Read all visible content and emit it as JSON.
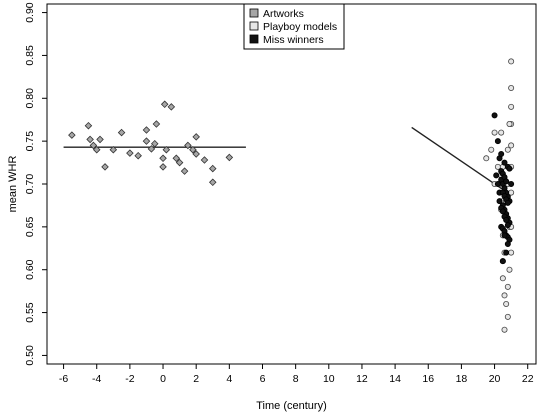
{
  "chart_data": {
    "type": "scatter",
    "title": "",
    "xlabel": "Time (century)",
    "ylabel": "mean WHR",
    "xlim": [
      -7,
      22.5
    ],
    "ylim": [
      0.49,
      0.91
    ],
    "x_ticks": [
      "-6",
      "-4",
      "-2",
      "0",
      "2",
      "4",
      "6",
      "8",
      "10",
      "12",
      "14",
      "16",
      "18",
      "20",
      "22"
    ],
    "y_ticks": [
      "0.50",
      "0.55",
      "0.60",
      "0.65",
      "0.70",
      "0.75",
      "0.80",
      "0.85",
      "0.90"
    ],
    "grid": false,
    "legend_position": "top-center",
    "series": [
      {
        "name": "Artworks",
        "color": "#a6a6a6",
        "marker": "diamond",
        "x": [
          -5.5,
          -4.5,
          -4.4,
          -4.2,
          -4.0,
          -3.8,
          -3.5,
          -3.0,
          -2.5,
          -2.0,
          -1.5,
          -1.0,
          -1.0,
          -0.7,
          -0.5,
          -0.4,
          0.0,
          0.0,
          0.1,
          0.2,
          0.5,
          0.8,
          1.0,
          1.3,
          1.5,
          1.8,
          2.0,
          2.0,
          2.5,
          3.0,
          3.0,
          4.0
        ],
        "y": [
          0.757,
          0.768,
          0.752,
          0.745,
          0.74,
          0.752,
          0.72,
          0.74,
          0.76,
          0.736,
          0.733,
          0.763,
          0.75,
          0.741,
          0.747,
          0.77,
          0.73,
          0.72,
          0.793,
          0.74,
          0.79,
          0.73,
          0.725,
          0.715,
          0.745,
          0.74,
          0.735,
          0.755,
          0.728,
          0.718,
          0.702,
          0.731
        ],
        "fit_line": {
          "x": [
            -6,
            5
          ],
          "y": [
            0.743,
            0.743
          ]
        }
      },
      {
        "name": "Playboy models",
        "color": "#e6e6e6",
        "marker": "circle",
        "x": [
          19.5,
          19.8,
          20.0,
          20.0,
          20.2,
          20.3,
          20.4,
          20.5,
          20.6,
          20.7,
          20.8,
          20.9,
          21.0,
          21.0,
          21.0,
          21.0,
          21.0,
          21.0,
          21.0,
          20.9,
          20.8,
          20.7,
          20.6,
          20.5,
          20.5,
          20.4,
          20.3,
          20.6,
          20.8,
          21.0,
          20.7,
          20.5,
          20.9,
          21.0,
          20.4,
          20.6,
          20.8,
          20.5
        ],
        "y": [
          0.73,
          0.74,
          0.76,
          0.7,
          0.72,
          0.69,
          0.71,
          0.68,
          0.7,
          0.66,
          0.74,
          0.65,
          0.843,
          0.812,
          0.79,
          0.77,
          0.745,
          0.69,
          0.62,
          0.6,
          0.58,
          0.56,
          0.57,
          0.64,
          0.61,
          0.67,
          0.7,
          0.53,
          0.545,
          0.72,
          0.68,
          0.72,
          0.77,
          0.65,
          0.76,
          0.62,
          0.7,
          0.59
        ],
        "fit_line": {
          "x": [
            15,
            21
          ],
          "y": [
            0.766,
            0.687
          ]
        }
      },
      {
        "name": "Miss winners",
        "color": "#111111",
        "marker": "circle",
        "x": [
          20.0,
          20.1,
          20.2,
          20.3,
          20.4,
          20.5,
          20.6,
          20.7,
          20.8,
          20.9,
          21.0,
          20.5,
          20.6,
          20.7,
          20.8,
          20.9,
          20.4,
          20.5,
          20.6,
          20.7,
          20.8,
          20.9,
          20.3,
          20.4,
          20.5,
          20.6,
          20.7,
          20.8,
          20.5,
          20.6,
          20.7,
          20.8,
          20.4,
          20.5,
          20.6,
          20.7,
          20.3,
          20.4,
          20.6,
          20.8,
          20.9,
          20.5,
          20.7,
          20.2,
          20.6,
          20.8
        ],
        "y": [
          0.78,
          0.71,
          0.7,
          0.69,
          0.705,
          0.7,
          0.695,
          0.69,
          0.685,
          0.68,
          0.7,
          0.675,
          0.67,
          0.665,
          0.66,
          0.655,
          0.65,
          0.648,
          0.645,
          0.64,
          0.638,
          0.635,
          0.68,
          0.672,
          0.668,
          0.662,
          0.658,
          0.652,
          0.69,
          0.686,
          0.682,
          0.678,
          0.715,
          0.712,
          0.708,
          0.703,
          0.73,
          0.735,
          0.725,
          0.72,
          0.718,
          0.61,
          0.62,
          0.75,
          0.64,
          0.63
        ]
      }
    ]
  }
}
